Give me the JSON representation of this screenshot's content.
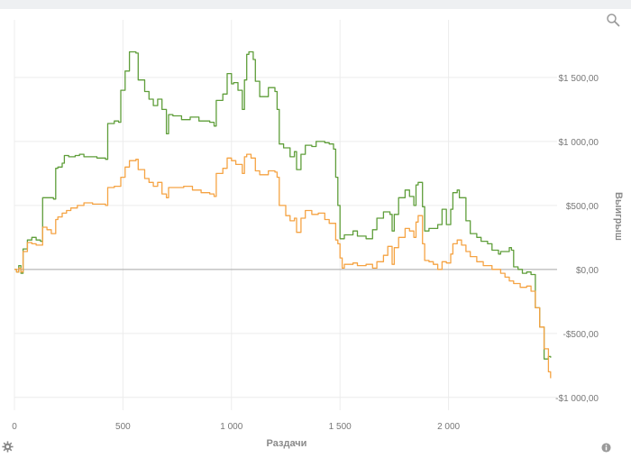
{
  "chart_data": {
    "type": "line",
    "title": "",
    "xlabel": "Раздачи",
    "ylabel": "Выигрыш",
    "xlim": [
      0,
      2500
    ],
    "ylim": [
      -1100,
      1950
    ],
    "x_ticks": [
      0,
      500,
      1000,
      1500,
      2000
    ],
    "x_tick_labels": [
      "0",
      "500",
      "1 000",
      "1 500",
      "2 000"
    ],
    "y_ticks": [
      1500,
      1000,
      500,
      0,
      -500,
      -1000
    ],
    "y_tick_labels": [
      "$1 500,00",
      "$1 000,00",
      "$500,00",
      "$0,00",
      "-$500,00",
      "-$1 000,00"
    ],
    "grid": true,
    "legend": "none",
    "colors": {
      "green_series": "#5f9e3a",
      "orange_series": "#f5a343",
      "zero_line": "#aaaaaa",
      "grid": "#ececec"
    },
    "series": [
      {
        "color": "#5f9e3a",
        "points": [
          [
            0,
            0
          ],
          [
            10,
            -20
          ],
          [
            20,
            30
          ],
          [
            30,
            -30
          ],
          [
            40,
            160
          ],
          [
            60,
            230
          ],
          [
            80,
            250
          ],
          [
            100,
            230
          ],
          [
            120,
            220
          ],
          [
            130,
            560
          ],
          [
            150,
            560
          ],
          [
            180,
            550
          ],
          [
            190,
            790
          ],
          [
            200,
            800
          ],
          [
            220,
            830
          ],
          [
            230,
            890
          ],
          [
            250,
            880
          ],
          [
            280,
            890
          ],
          [
            300,
            900
          ],
          [
            320,
            880
          ],
          [
            380,
            870
          ],
          [
            420,
            860
          ],
          [
            430,
            1140
          ],
          [
            460,
            1160
          ],
          [
            480,
            1150
          ],
          [
            490,
            1400
          ],
          [
            510,
            1550
          ],
          [
            530,
            1700
          ],
          [
            560,
            1690
          ],
          [
            570,
            1480
          ],
          [
            600,
            1390
          ],
          [
            620,
            1330
          ],
          [
            640,
            1280
          ],
          [
            660,
            1330
          ],
          [
            680,
            1250
          ],
          [
            700,
            1060
          ],
          [
            710,
            1210
          ],
          [
            730,
            1200
          ],
          [
            770,
            1170
          ],
          [
            810,
            1190
          ],
          [
            850,
            1160
          ],
          [
            900,
            1150
          ],
          [
            920,
            1120
          ],
          [
            930,
            1320
          ],
          [
            960,
            1370
          ],
          [
            980,
            1530
          ],
          [
            1000,
            1450
          ],
          [
            1010,
            1460
          ],
          [
            1030,
            1400
          ],
          [
            1050,
            1250
          ],
          [
            1060,
            1480
          ],
          [
            1070,
            1680
          ],
          [
            1080,
            1700
          ],
          [
            1100,
            1640
          ],
          [
            1110,
            1470
          ],
          [
            1130,
            1350
          ],
          [
            1170,
            1420
          ],
          [
            1200,
            1390
          ],
          [
            1210,
            1250
          ],
          [
            1220,
            980
          ],
          [
            1240,
            950
          ],
          [
            1270,
            880
          ],
          [
            1290,
            920
          ],
          [
            1300,
            780
          ],
          [
            1320,
            900
          ],
          [
            1340,
            970
          ],
          [
            1370,
            960
          ],
          [
            1390,
            1000
          ],
          [
            1430,
            990
          ],
          [
            1450,
            980
          ],
          [
            1470,
            940
          ],
          [
            1480,
            720
          ],
          [
            1490,
            500
          ],
          [
            1500,
            240
          ],
          [
            1520,
            270
          ],
          [
            1560,
            300
          ],
          [
            1580,
            260
          ],
          [
            1620,
            240
          ],
          [
            1650,
            310
          ],
          [
            1670,
            400
          ],
          [
            1700,
            450
          ],
          [
            1730,
            430
          ],
          [
            1740,
            300
          ],
          [
            1750,
            430
          ],
          [
            1770,
            560
          ],
          [
            1800,
            620
          ],
          [
            1820,
            570
          ],
          [
            1840,
            500
          ],
          [
            1850,
            660
          ],
          [
            1860,
            680
          ],
          [
            1880,
            490
          ],
          [
            1890,
            300
          ],
          [
            1910,
            320
          ],
          [
            1950,
            350
          ],
          [
            1970,
            470
          ],
          [
            1990,
            350
          ],
          [
            2010,
            470
          ],
          [
            2020,
            600
          ],
          [
            2040,
            620
          ],
          [
            2050,
            560
          ],
          [
            2060,
            560
          ],
          [
            2080,
            380
          ],
          [
            2100,
            280
          ],
          [
            2130,
            250
          ],
          [
            2150,
            220
          ],
          [
            2180,
            200
          ],
          [
            2200,
            150
          ],
          [
            2230,
            120
          ],
          [
            2240,
            140
          ],
          [
            2260,
            140
          ],
          [
            2280,
            170
          ],
          [
            2290,
            150
          ],
          [
            2300,
            20
          ],
          [
            2320,
            0
          ],
          [
            2340,
            -30
          ],
          [
            2360,
            -20
          ],
          [
            2380,
            -40
          ],
          [
            2400,
            -300
          ],
          [
            2420,
            -450
          ],
          [
            2440,
            -700
          ],
          [
            2460,
            -680
          ],
          [
            2470,
            -690
          ]
        ]
      },
      {
        "color": "#f5a343",
        "points": [
          [
            0,
            0
          ],
          [
            10,
            -20
          ],
          [
            20,
            10
          ],
          [
            30,
            -20
          ],
          [
            40,
            140
          ],
          [
            60,
            210
          ],
          [
            80,
            200
          ],
          [
            100,
            190
          ],
          [
            120,
            190
          ],
          [
            130,
            330
          ],
          [
            150,
            310
          ],
          [
            170,
            280
          ],
          [
            190,
            390
          ],
          [
            200,
            410
          ],
          [
            220,
            440
          ],
          [
            240,
            460
          ],
          [
            260,
            480
          ],
          [
            290,
            500
          ],
          [
            320,
            520
          ],
          [
            360,
            510
          ],
          [
            400,
            510
          ],
          [
            420,
            500
          ],
          [
            430,
            640
          ],
          [
            460,
            650
          ],
          [
            480,
            650
          ],
          [
            490,
            720
          ],
          [
            510,
            800
          ],
          [
            530,
            850
          ],
          [
            560,
            860
          ],
          [
            570,
            780
          ],
          [
            600,
            710
          ],
          [
            620,
            680
          ],
          [
            640,
            650
          ],
          [
            660,
            680
          ],
          [
            680,
            590
          ],
          [
            700,
            560
          ],
          [
            710,
            640
          ],
          [
            750,
            640
          ],
          [
            780,
            650
          ],
          [
            820,
            620
          ],
          [
            860,
            600
          ],
          [
            900,
            590
          ],
          [
            920,
            570
          ],
          [
            930,
            750
          ],
          [
            960,
            790
          ],
          [
            980,
            870
          ],
          [
            1000,
            850
          ],
          [
            1020,
            820
          ],
          [
            1050,
            750
          ],
          [
            1060,
            880
          ],
          [
            1070,
            900
          ],
          [
            1090,
            870
          ],
          [
            1110,
            770
          ],
          [
            1130,
            740
          ],
          [
            1170,
            770
          ],
          [
            1200,
            760
          ],
          [
            1210,
            720
          ],
          [
            1220,
            500
          ],
          [
            1250,
            420
          ],
          [
            1270,
            380
          ],
          [
            1290,
            400
          ],
          [
            1300,
            290
          ],
          [
            1320,
            400
          ],
          [
            1340,
            460
          ],
          [
            1370,
            430
          ],
          [
            1400,
            440
          ],
          [
            1430,
            390
          ],
          [
            1450,
            360
          ],
          [
            1480,
            230
          ],
          [
            1490,
            200
          ],
          [
            1500,
            90
          ],
          [
            1510,
            10
          ],
          [
            1520,
            40
          ],
          [
            1560,
            50
          ],
          [
            1580,
            30
          ],
          [
            1620,
            40
          ],
          [
            1650,
            10
          ],
          [
            1670,
            60
          ],
          [
            1700,
            110
          ],
          [
            1720,
            180
          ],
          [
            1740,
            40
          ],
          [
            1750,
            170
          ],
          [
            1770,
            250
          ],
          [
            1800,
            320
          ],
          [
            1820,
            300
          ],
          [
            1840,
            250
          ],
          [
            1850,
            370
          ],
          [
            1860,
            420
          ],
          [
            1880,
            200
          ],
          [
            1890,
            70
          ],
          [
            1910,
            60
          ],
          [
            1930,
            40
          ],
          [
            1950,
            0
          ],
          [
            1970,
            60
          ],
          [
            1990,
            50
          ],
          [
            2010,
            120
          ],
          [
            2020,
            200
          ],
          [
            2040,
            230
          ],
          [
            2060,
            190
          ],
          [
            2080,
            140
          ],
          [
            2100,
            100
          ],
          [
            2130,
            60
          ],
          [
            2160,
            30
          ],
          [
            2200,
            0
          ],
          [
            2240,
            -30
          ],
          [
            2260,
            -60
          ],
          [
            2280,
            -90
          ],
          [
            2300,
            -110
          ],
          [
            2330,
            -140
          ],
          [
            2360,
            -130
          ],
          [
            2380,
            -170
          ],
          [
            2400,
            -300
          ],
          [
            2420,
            -450
          ],
          [
            2440,
            -620
          ],
          [
            2460,
            -800
          ],
          [
            2470,
            -850
          ]
        ]
      }
    ]
  },
  "icons": {
    "zoom": "magnifier-icon",
    "settings": "gear-icon",
    "info": "info-icon"
  }
}
